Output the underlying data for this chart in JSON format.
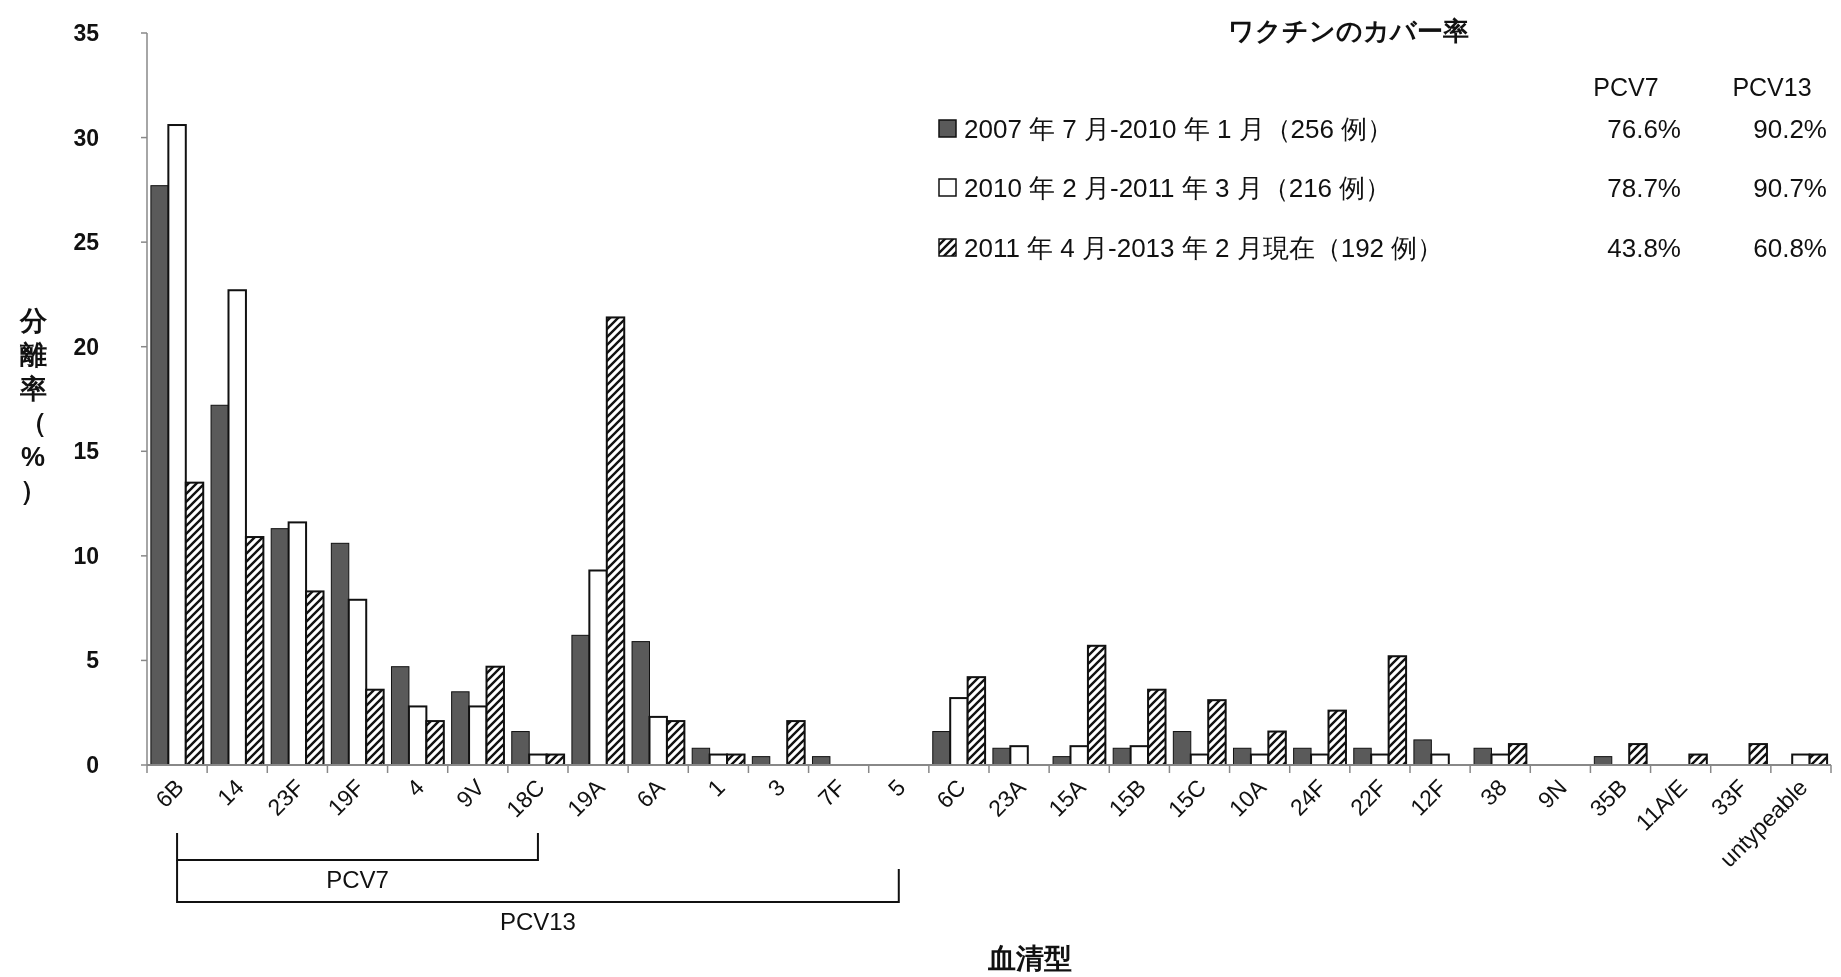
{
  "chart_data": {
    "type": "bar",
    "ylabel": "分離率（%）",
    "xlabel": "血清型",
    "legend_title": "ワクチンのカバー率",
    "categories": [
      "6B",
      "14",
      "23F",
      "19F",
      "4",
      "9V",
      "18C",
      "19A",
      "6A",
      "1",
      "3",
      "7F",
      "5",
      "6C",
      "23A",
      "15A",
      "15B",
      "15C",
      "10A",
      "24F",
      "22F",
      "12F",
      "38",
      "9N",
      "35B",
      "11A/E",
      "33F",
      "untypeable"
    ],
    "series": [
      {
        "name": "2007 年 7 月-2010 年 1 月（256 例）",
        "color": "#5a5a5a",
        "values": [
          27.7,
          17.2,
          11.3,
          10.6,
          4.7,
          3.5,
          1.6,
          6.2,
          5.9,
          0.8,
          0.4,
          0.4,
          0,
          1.6,
          0.8,
          0.4,
          0.8,
          1.6,
          0.8,
          0.8,
          0.8,
          1.2,
          0.8,
          0,
          0.4,
          0,
          0,
          0
        ]
      },
      {
        "name": "2010 年 2 月-2011 年 3 月（216 例）",
        "color": "#ffffff",
        "values": [
          30.6,
          22.7,
          11.6,
          7.9,
          2.8,
          2.8,
          0.5,
          9.3,
          2.3,
          0.5,
          0,
          0,
          0,
          3.2,
          0.9,
          0.9,
          0.9,
          0.5,
          0.5,
          0.5,
          0.5,
          0.5,
          0.5,
          0,
          0,
          0,
          0,
          0.5
        ]
      },
      {
        "name": "2011 年 4 月-2013 年 2 月現在（192 例）",
        "color": "#111111",
        "values": [
          13.5,
          10.9,
          8.3,
          3.6,
          2.1,
          4.7,
          0.5,
          21.4,
          2.1,
          0.5,
          2.1,
          0,
          0,
          4.2,
          0,
          5.7,
          3.6,
          3.1,
          1.6,
          2.6,
          5.2,
          0,
          1.0,
          0,
          1.0,
          0.5,
          1.0,
          0.5
        ]
      }
    ],
    "ylim": [
      0,
      35
    ],
    "yticks": [
      0,
      5,
      10,
      15,
      20,
      25,
      30,
      35
    ],
    "legend": "top right",
    "annotations": [
      "PCV7",
      "PCV13",
      "76.6%",
      "90.2%",
      "78.7%",
      "90.7%",
      "43.8%",
      "60.8%",
      "PCV7",
      "PCV13"
    ]
  }
}
